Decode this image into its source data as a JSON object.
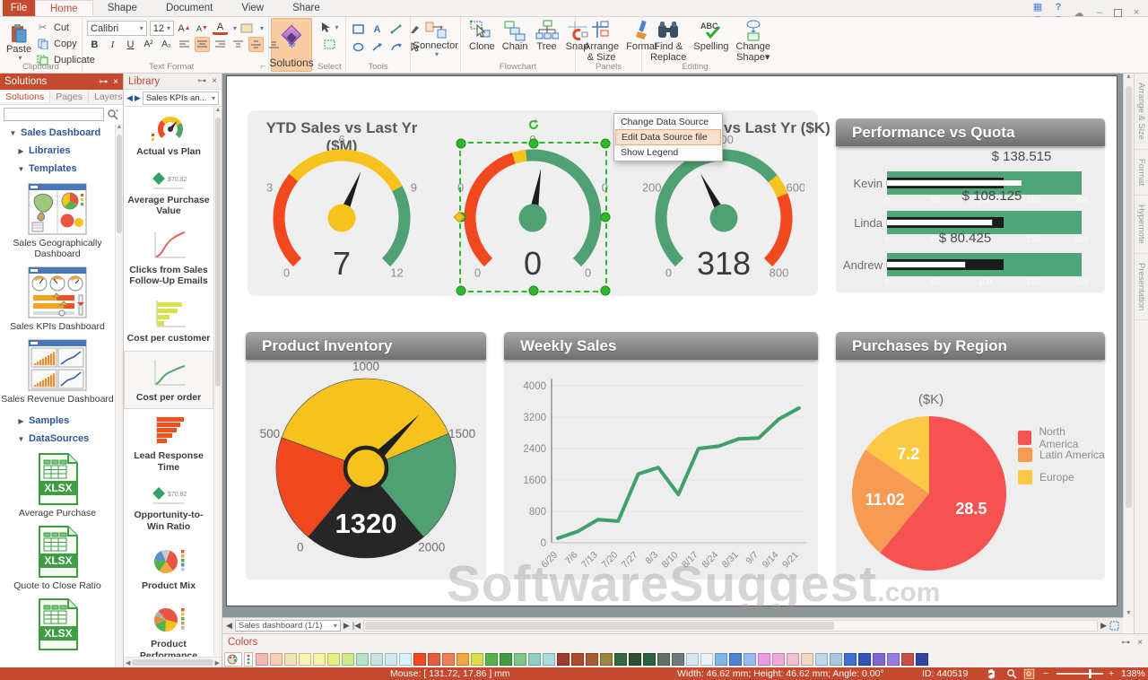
{
  "titlebar": {
    "tabs": [
      "File",
      "Home",
      "Shape",
      "Document",
      "View",
      "Share"
    ]
  },
  "ribbon": {
    "clipboard": {
      "label": "Clipboard",
      "paste": "Paste",
      "cut": "Cut",
      "copy": "Copy",
      "duplicate": "Duplicate"
    },
    "text_format": {
      "label": "Text Format",
      "font_name": "Calibri",
      "font_size": "12",
      "bold": "B",
      "italic": "I",
      "underline": "U",
      "superscript": "A²",
      "subscript": "A₂"
    },
    "solutions_button": "Solutions",
    "select_label": "Select",
    "tools_label": "Tools",
    "connector": "Connector",
    "flowchart": {
      "label": "Flowchart",
      "clone": "Clone",
      "chain": "Chain",
      "tree": "Tree",
      "snap": "Snap"
    },
    "panels": {
      "label": "Panels",
      "arrange": "Arrange & Size",
      "format": "Format"
    },
    "editing": {
      "label": "Editing",
      "find": "Find & Replace",
      "spelling": "Spelling",
      "change_shape": "Change Shape"
    }
  },
  "solutions_panel": {
    "title": "Solutions",
    "tabs": [
      "Solutions",
      "Pages",
      "Layers"
    ],
    "tree": [
      {
        "type": "node",
        "label": "Sales Dashboard",
        "state": "expanded",
        "level": 0
      },
      {
        "type": "node",
        "label": "Libraries",
        "state": "collapsed",
        "level": 1
      },
      {
        "type": "node",
        "label": "Templates",
        "state": "expanded",
        "level": 1
      },
      {
        "type": "thumb",
        "icon": "geo",
        "label": "Sales Geographically Dashboard"
      },
      {
        "type": "thumb",
        "icon": "kpis",
        "label": "Sales KPIs Dashboard"
      },
      {
        "type": "thumb",
        "icon": "revenue",
        "label": "Sales Revenue Dashboard"
      },
      {
        "type": "node",
        "label": "Samples",
        "state": "collapsed",
        "level": 1
      },
      {
        "type": "node",
        "label": "DataSources",
        "state": "expanded",
        "level": 1
      },
      {
        "type": "thumb",
        "icon": "xlsx",
        "label": "Average Purchase"
      },
      {
        "type": "thumb",
        "icon": "xlsx",
        "label": "Quote to Close Ratio"
      },
      {
        "type": "thumb",
        "icon": "xlsx",
        "label": ""
      }
    ]
  },
  "library": {
    "title": "Library",
    "dropdown": "Sales KPIs an...",
    "items": [
      {
        "label": "Actual vs Plan",
        "icon": "gauge",
        "selected": false
      },
      {
        "label": "Average Purchase Value",
        "icon": "kpi",
        "selected": false
      },
      {
        "label": "Clicks from Sales Follow-Up Emails",
        "icon": "line-red",
        "selected": false
      },
      {
        "label": "Cost per customer",
        "icon": "bars-yellow",
        "selected": false
      },
      {
        "label": "Cost per order",
        "icon": "line-green",
        "selected": true
      },
      {
        "label": "Lead Response Time",
        "icon": "bars-orange",
        "selected": false
      },
      {
        "label": "Opportunity-to-Win Ratio",
        "icon": "kpi",
        "selected": false
      },
      {
        "label": "Product Mix",
        "icon": "pie",
        "selected": false
      },
      {
        "label": "Product Performance",
        "icon": "pie2",
        "selected": false
      }
    ]
  },
  "canvas": {
    "watermark": "SoftwareSuggest",
    "watermark_suffix": ".com",
    "context_menu": {
      "items": [
        "Change Data Source",
        "Edit Data Source file",
        "Show Legend"
      ],
      "highlighted_index": 1
    }
  },
  "chart_data": [
    {
      "id": "gauge-ytd-m",
      "type": "gauge",
      "title": "YTD Sales vs Last Yr ($M)",
      "ticks": [
        "0",
        "3",
        "6",
        "9",
        "12"
      ],
      "value_label": "7",
      "needle_frac": 0.583,
      "zones": [
        {
          "to": 0.315,
          "color": "#f2481f"
        },
        {
          "to": 0.73,
          "color": "#f6c21d"
        },
        {
          "to": 1,
          "color": "#4fa173"
        }
      ],
      "hub": "#f6c21d"
    },
    {
      "id": "gauge-selected",
      "type": "gauge",
      "title": "",
      "ticks": [
        "0",
        "0",
        "0",
        "0",
        "0"
      ],
      "value_label": "0",
      "needle_frac": 0.535,
      "zones": [
        {
          "to": 0.435,
          "color": "#f2481f"
        },
        {
          "to": 0.478,
          "color": "#f6c21d"
        },
        {
          "to": 1,
          "color": "#4fa173"
        }
      ],
      "hub": "#4fa173"
    },
    {
      "id": "gauge-ytd-k",
      "type": "gauge",
      "title": "vs Last Yr ($K)",
      "ticks": [
        "0",
        "200",
        "400",
        "600",
        "800"
      ],
      "value_label": "318",
      "needle_frac": 0.3975,
      "zones": [
        {
          "to": 0.69,
          "color": "#4fa173"
        },
        {
          "to": 0.755,
          "color": "#f6c21d"
        },
        {
          "to": 1,
          "color": "#f2481f"
        }
      ],
      "hub": "#4fa173"
    },
    {
      "type": "bullet",
      "title": "Performance vs Quota",
      "max": 200,
      "axis": [
        "0",
        "50",
        "100",
        "150",
        "200"
      ],
      "target": 120,
      "rows": [
        {
          "name": "Kevin",
          "value": 138.515,
          "label": "$ 138.515"
        },
        {
          "name": "Linda",
          "value": 108.125,
          "label": "$ 108.125"
        },
        {
          "name": "Andrew",
          "value": 80.425,
          "label": "$ 80.425"
        }
      ]
    },
    {
      "id": "dial-inventory",
      "type": "dial",
      "title": "Product Inventory",
      "min": 0,
      "max": 2000,
      "start_angle": -140,
      "sweep": 280,
      "ticks": [
        {
          "v": 0,
          "label": "0"
        },
        {
          "v": 500,
          "label": "500"
        },
        {
          "v": 1000,
          "label": "1000"
        },
        {
          "v": 1500,
          "label": "1500"
        },
        {
          "v": 2000,
          "label": "2000"
        }
      ],
      "value": 1320,
      "value_label": "1320",
      "zones": [
        {
          "to": 500,
          "color": "#f2481f"
        },
        {
          "to": 1480,
          "color": "#f6c21d"
        },
        {
          "to": 2000,
          "color": "#4fa173"
        }
      ],
      "rest_color": "#262626",
      "hub": "#f6c21d"
    },
    {
      "id": "line-weekly",
      "type": "line",
      "title": "Weekly Sales",
      "x": [
        "6/29",
        "7/6",
        "7/13",
        "7/20",
        "7/27",
        "8/3",
        "8/10",
        "8/17",
        "8/24",
        "8/31",
        "9/7",
        "9/14",
        "9/21"
      ],
      "values": [
        114,
        290,
        590,
        550,
        1750,
        1915,
        1230,
        2400,
        2460,
        2645,
        2670,
        3150,
        3430
      ],
      "yticks": [
        0,
        800,
        1600,
        2400,
        3200,
        4000
      ],
      "ymax": 4000,
      "color": "#3fa06c",
      "grid": true,
      "legend": "none"
    },
    {
      "id": "pie-purchases",
      "type": "pie",
      "title": "Purchases by Region",
      "unit_label": "($K)",
      "legend_position": "right",
      "slices": [
        {
          "name": "North America",
          "value": 28.5,
          "label": "28.5",
          "color": "#f75252"
        },
        {
          "name": "Latin America",
          "value": 11.02,
          "label": "11.02",
          "color": "#f79a52"
        },
        {
          "name": "Europe",
          "value": 7.2,
          "label": "7.2",
          "color": "#fbc944"
        }
      ]
    }
  ],
  "page_nav": {
    "page_label": "Sales dashboard (1/1)"
  },
  "colors_panel": {
    "title": "Colors",
    "swatches": [
      "#f4b9b5",
      "#f7d0b3",
      "#f6e3b4",
      "#fdf2af",
      "#f7f3a1",
      "#e6f07e",
      "#cdeb8e",
      "#b5e5c6",
      "#c6e3de",
      "#cdeaf3",
      "#d8f1fa",
      "#f24a1e",
      "#e75b3e",
      "#ee7e55",
      "#f1a73c",
      "#dade4b",
      "#55b24b",
      "#3f9e44",
      "#82c58a",
      "#90d0c2",
      "#aadbe1",
      "#9f3c2d",
      "#af4a31",
      "#a75c34",
      "#9c8441",
      "#35693d",
      "#2e4f33",
      "#276340",
      "#5d7262",
      "#707b77",
      "#d4e9f2",
      "#e8f4fa",
      "#81b4e8",
      "#4f81d6",
      "#94baee",
      "#eb9be3",
      "#f0a9d8",
      "#edc1ce",
      "#f5d7c2",
      "#bdd9eb",
      "#a6c9e1",
      "#3f70d1",
      "#2f55bd",
      "#7a68d4",
      "#9a7ce0",
      "#c75048",
      "#31479e"
    ]
  },
  "status_bar": {
    "mouse": "Mouse: [ 131.72, 17.86 ] mm",
    "dims": "Width: 46.62 mm;  Height: 46.62 mm;  Angle: 0.00°",
    "object_id": "ID: 440519",
    "zoom": "138%"
  },
  "right_tabs": [
    "Arrange & Size",
    "Format",
    "Hypernote",
    "Presentation"
  ]
}
